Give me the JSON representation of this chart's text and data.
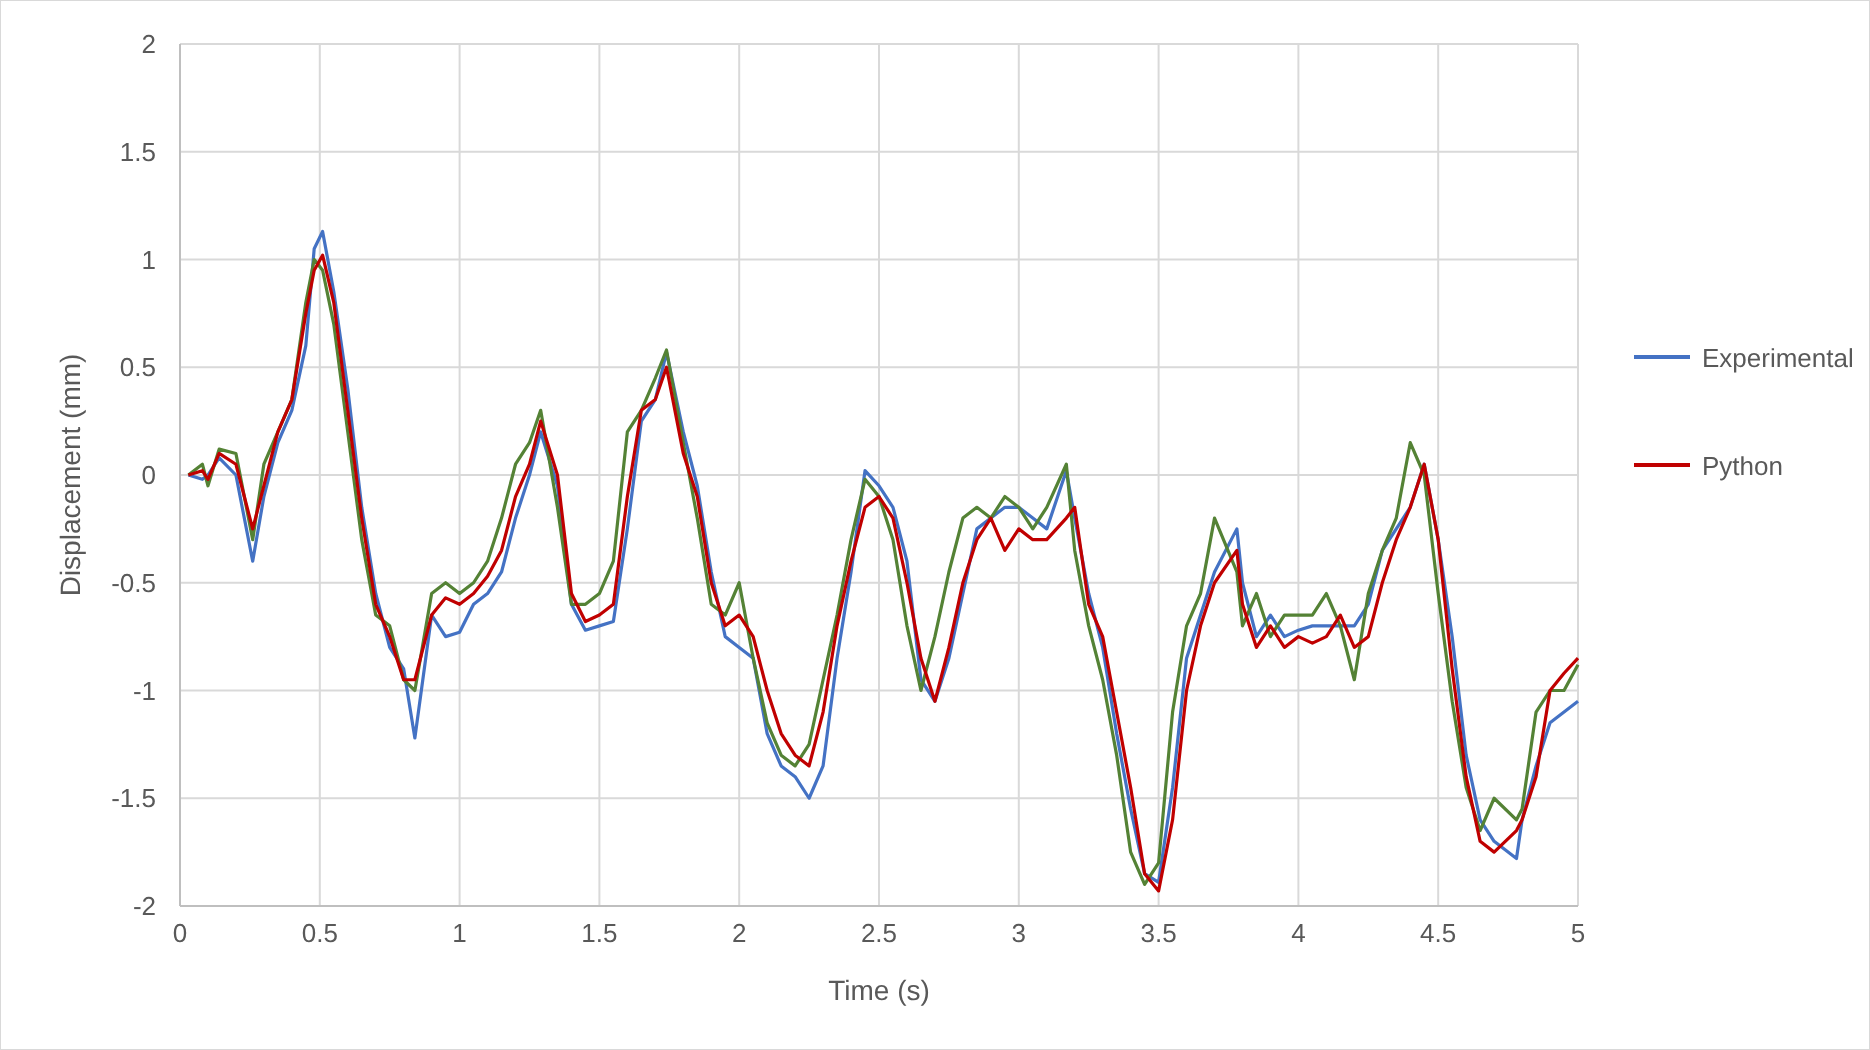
{
  "chart_data": {
    "type": "line",
    "xlabel": "Time (s)",
    "ylabel": "Displacement (mm)",
    "xlim": [
      0,
      5
    ],
    "ylim": [
      -2,
      2
    ],
    "xticks": [
      0,
      0.5,
      1,
      1.5,
      2,
      2.5,
      3,
      3.5,
      4,
      4.5,
      5
    ],
    "yticks": [
      -2,
      -1.5,
      -1,
      -0.5,
      0,
      0.5,
      1,
      1.5,
      2
    ],
    "grid": true,
    "legend": "right",
    "marker": "none",
    "line_style": "solid",
    "x": [
      0.03,
      0.08,
      0.1,
      0.14,
      0.2,
      0.26,
      0.3,
      0.35,
      0.4,
      0.45,
      0.48,
      0.51,
      0.55,
      0.6,
      0.65,
      0.7,
      0.75,
      0.8,
      0.84,
      0.9,
      0.95,
      1.0,
      1.05,
      1.1,
      1.15,
      1.2,
      1.25,
      1.29,
      1.35,
      1.4,
      1.45,
      1.5,
      1.55,
      1.6,
      1.65,
      1.7,
      1.74,
      1.8,
      1.85,
      1.9,
      1.95,
      2.0,
      2.05,
      2.1,
      2.15,
      2.2,
      2.25,
      2.3,
      2.35,
      2.4,
      2.45,
      2.5,
      2.55,
      2.6,
      2.65,
      2.7,
      2.75,
      2.8,
      2.85,
      2.9,
      2.95,
      3.0,
      3.05,
      3.1,
      3.17,
      3.2,
      3.25,
      3.3,
      3.35,
      3.4,
      3.45,
      3.5,
      3.55,
      3.6,
      3.65,
      3.7,
      3.78,
      3.8,
      3.85,
      3.9,
      3.95,
      4.0,
      4.05,
      4.1,
      4.15,
      4.2,
      4.25,
      4.3,
      4.35,
      4.4,
      4.45,
      4.5,
      4.55,
      4.6,
      4.65,
      4.7,
      4.78,
      4.8,
      4.85,
      4.9,
      4.95,
      5.0
    ],
    "series": [
      {
        "name": "Experimental",
        "color": "#4472c4",
        "values": [
          0,
          -0.02,
          0,
          0.08,
          0,
          -0.4,
          -0.1,
          0.15,
          0.3,
          0.6,
          1.05,
          1.13,
          0.85,
          0.4,
          -0.15,
          -0.55,
          -0.8,
          -0.9,
          -1.22,
          -0.65,
          -0.75,
          -0.73,
          -0.6,
          -0.55,
          -0.45,
          -0.2,
          0.0,
          0.2,
          -0.05,
          -0.6,
          -0.72,
          -0.7,
          -0.68,
          -0.25,
          0.25,
          0.35,
          0.57,
          0.2,
          -0.05,
          -0.45,
          -0.75,
          -0.8,
          -0.85,
          -1.2,
          -1.35,
          -1.4,
          -1.5,
          -1.35,
          -0.85,
          -0.45,
          0.02,
          -0.05,
          -0.15,
          -0.4,
          -0.95,
          -1.05,
          -0.85,
          -0.55,
          -0.25,
          -0.2,
          -0.15,
          -0.15,
          -0.2,
          -0.25,
          0.02,
          -0.2,
          -0.55,
          -0.8,
          -1.2,
          -1.55,
          -1.85,
          -1.89,
          -1.45,
          -0.85,
          -0.65,
          -0.45,
          -0.25,
          -0.5,
          -0.75,
          -0.65,
          -0.75,
          -0.72,
          -0.7,
          -0.7,
          -0.7,
          -0.7,
          -0.6,
          -0.35,
          -0.25,
          -0.15,
          0.05,
          -0.3,
          -0.75,
          -1.3,
          -1.6,
          -1.7,
          -1.78,
          -1.6,
          -1.35,
          -1.15,
          -1.1,
          -1.05
        ]
      },
      {
        "color": "#548235",
        "values": [
          0,
          0.05,
          -0.05,
          0.12,
          0.1,
          -0.3,
          0.05,
          0.2,
          0.35,
          0.8,
          1.0,
          0.95,
          0.7,
          0.2,
          -0.3,
          -0.65,
          -0.7,
          -0.95,
          -1.0,
          -0.55,
          -0.5,
          -0.55,
          -0.5,
          -0.4,
          -0.2,
          0.05,
          0.15,
          0.3,
          -0.15,
          -0.6,
          -0.6,
          -0.55,
          -0.4,
          0.2,
          0.3,
          0.45,
          0.58,
          0.15,
          -0.2,
          -0.6,
          -0.65,
          -0.5,
          -0.85,
          -1.15,
          -1.3,
          -1.35,
          -1.25,
          -0.95,
          -0.65,
          -0.3,
          -0.02,
          -0.1,
          -0.3,
          -0.7,
          -1.0,
          -0.75,
          -0.45,
          -0.2,
          -0.15,
          -0.2,
          -0.1,
          -0.15,
          -0.25,
          -0.15,
          0.05,
          -0.35,
          -0.7,
          -0.95,
          -1.3,
          -1.75,
          -1.9,
          -1.8,
          -1.1,
          -0.7,
          -0.55,
          -0.2,
          -0.45,
          -0.7,
          -0.55,
          -0.75,
          -0.65,
          -0.65,
          -0.65,
          -0.55,
          -0.7,
          -0.95,
          -0.55,
          -0.35,
          -0.2,
          0.15,
          0.0,
          -0.55,
          -1.05,
          -1.45,
          -1.65,
          -1.5,
          -1.6,
          -1.55,
          -1.1,
          -1.0,
          -1.0,
          -0.88
        ]
      },
      {
        "name": "Python",
        "color": "#c00000",
        "values": [
          0,
          0.02,
          -0.02,
          0.1,
          0.05,
          -0.25,
          -0.05,
          0.2,
          0.35,
          0.75,
          0.95,
          1.02,
          0.8,
          0.3,
          -0.2,
          -0.6,
          -0.75,
          -0.95,
          -0.95,
          -0.65,
          -0.57,
          -0.6,
          -0.55,
          -0.47,
          -0.35,
          -0.1,
          0.05,
          0.25,
          0.0,
          -0.55,
          -0.68,
          -0.65,
          -0.6,
          -0.1,
          0.3,
          0.35,
          0.5,
          0.1,
          -0.1,
          -0.5,
          -0.7,
          -0.65,
          -0.75,
          -1.0,
          -1.2,
          -1.3,
          -1.35,
          -1.1,
          -0.7,
          -0.4,
          -0.15,
          -0.1,
          -0.2,
          -0.5,
          -0.85,
          -1.05,
          -0.8,
          -0.5,
          -0.3,
          -0.2,
          -0.35,
          -0.25,
          -0.3,
          -0.3,
          -0.2,
          -0.15,
          -0.6,
          -0.75,
          -1.1,
          -1.45,
          -1.85,
          -1.93,
          -1.6,
          -1.0,
          -0.7,
          -0.5,
          -0.35,
          -0.6,
          -0.8,
          -0.7,
          -0.8,
          -0.75,
          -0.78,
          -0.75,
          -0.65,
          -0.8,
          -0.75,
          -0.5,
          -0.3,
          -0.15,
          0.05,
          -0.3,
          -0.9,
          -1.4,
          -1.7,
          -1.75,
          -1.65,
          -1.6,
          -1.4,
          -1.0,
          -0.92,
          -0.85
        ]
      }
    ]
  }
}
